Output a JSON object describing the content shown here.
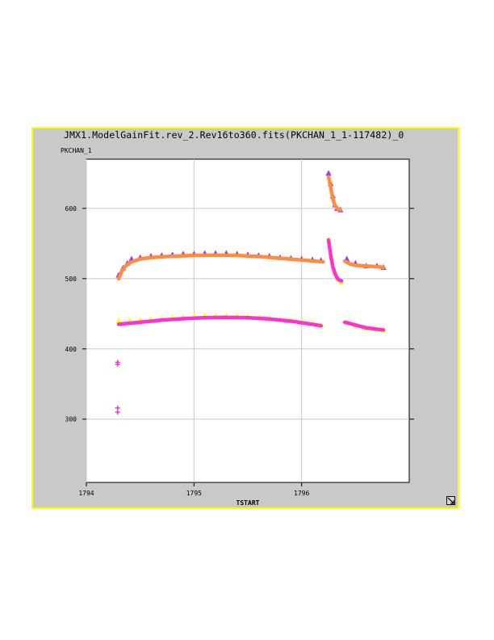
{
  "window": {
    "title": "JMX1.ModelGainFit.rev_2.Rev16to360.fits(PKCHAN_1_1-117482)_0"
  },
  "colors": {
    "panel_background": "#c9c9c9",
    "panel_border": "#ffff00",
    "plot_background": "#ffffff",
    "grid": "#c8c8c8",
    "purple_points": "#9933ff",
    "yellow_points": "#ffff00",
    "fit_magenta": "#ff33cc",
    "fit_orange": "#ff8c3c"
  },
  "chart_data": {
    "type": "scatter",
    "title": "JMX1.ModelGainFit.rev_2.Rev16to360.fits(PKCHAN_1_1-117482)_0",
    "xlabel": "TSTART",
    "ylabel": "PKCHAN_1",
    "xlim": [
      1794,
      1797
    ],
    "ylim": [
      210,
      670
    ],
    "xticks": [
      1794,
      1795,
      1796
    ],
    "xtick_labels": [
      "1794",
      "1795",
      "1796"
    ],
    "yticks": [
      300,
      400,
      500,
      600
    ],
    "ytick_labels": [
      "300",
      "400",
      "500",
      "600"
    ],
    "grid": true,
    "legend": "none",
    "series": [
      {
        "marker": "triangle",
        "color": "#9933ff",
        "x": [
          1794.3,
          1794.34,
          1794.38,
          1794.42,
          1794.5,
          1794.6,
          1794.7,
          1794.8,
          1794.9,
          1795.0,
          1795.1,
          1795.2,
          1795.3,
          1795.4,
          1795.5,
          1795.6,
          1795.7,
          1795.8,
          1795.9,
          1796.0,
          1796.1,
          1796.18,
          1796.25,
          1796.27,
          1796.29,
          1796.31,
          1796.33,
          1796.36,
          1796.42,
          1796.5,
          1796.6,
          1796.7,
          1796.76
        ],
        "y": [
          505,
          515,
          522,
          528,
          530,
          532,
          533,
          534,
          535,
          535,
          536,
          536,
          536,
          535,
          534,
          533,
          532,
          530,
          529,
          528,
          527,
          526,
          650,
          635,
          618,
          605,
          600,
          598,
          528,
          522,
          518,
          518,
          516
        ]
      },
      {
        "marker": "triangle",
        "color": "#ffff00",
        "x": [
          1794.3,
          1794.4,
          1794.5,
          1794.6,
          1794.7,
          1794.8,
          1794.9,
          1795.0,
          1795.1,
          1795.2,
          1795.3,
          1795.4,
          1795.5,
          1795.6,
          1795.7,
          1795.8,
          1795.9,
          1796.0,
          1796.1,
          1796.18,
          1796.25,
          1796.28,
          1796.31,
          1796.34,
          1796.37,
          1796.42,
          1796.5,
          1796.6,
          1796.7,
          1796.76
        ],
        "y": [
          440,
          440,
          441,
          442,
          443,
          444,
          445,
          446,
          447,
          447,
          447,
          447,
          446,
          445,
          444,
          442,
          440,
          438,
          436,
          434,
          555,
          530,
          510,
          500,
          495,
          438,
          434,
          430,
          428,
          427
        ]
      },
      {
        "marker": "cross",
        "color": "#ff33cc",
        "x": [
          1794.29,
          1794.29,
          1794.29,
          1794.29
        ],
        "y": [
          381,
          378,
          316,
          310
        ]
      }
    ],
    "fits": [
      {
        "color": "#ff8c3c",
        "x": [
          1794.3,
          1794.33,
          1794.37,
          1794.42,
          1794.5,
          1794.6,
          1794.8,
          1795.0,
          1795.2,
          1795.4,
          1795.6,
          1795.8,
          1796.0,
          1796.2
        ],
        "y": [
          500,
          511,
          519,
          524,
          528,
          530,
          532,
          533,
          533.5,
          533,
          531.5,
          529,
          526.5,
          524
        ]
      },
      {
        "color": "#ff8c3c",
        "x": [
          1796.25,
          1796.27,
          1796.29,
          1796.31,
          1796.33,
          1796.36
        ],
        "y": [
          645,
          630,
          614,
          604,
          600,
          598
        ]
      },
      {
        "color": "#ff8c3c",
        "x": [
          1796.4,
          1796.45,
          1796.5,
          1796.6,
          1796.7,
          1796.76
        ],
        "y": [
          525,
          521,
          519,
          518,
          517,
          516
        ]
      },
      {
        "color": "#ff33cc",
        "x": [
          1794.3,
          1794.5,
          1794.7,
          1794.9,
          1795.1,
          1795.3,
          1795.5,
          1795.7,
          1795.9,
          1796.1,
          1796.18
        ],
        "y": [
          435,
          438,
          441,
          443,
          444.5,
          445,
          444.5,
          442.5,
          439.5,
          435,
          433
        ]
      },
      {
        "color": "#ff33cc",
        "x": [
          1796.25,
          1796.27,
          1796.29,
          1796.31,
          1796.33,
          1796.35,
          1796.37
        ],
        "y": [
          555,
          533,
          517,
          507,
          501,
          498,
          497
        ]
      },
      {
        "color": "#ff33cc",
        "x": [
          1796.4,
          1796.5,
          1796.6,
          1796.7,
          1796.76
        ],
        "y": [
          438,
          434,
          430,
          428,
          427
        ]
      }
    ]
  }
}
